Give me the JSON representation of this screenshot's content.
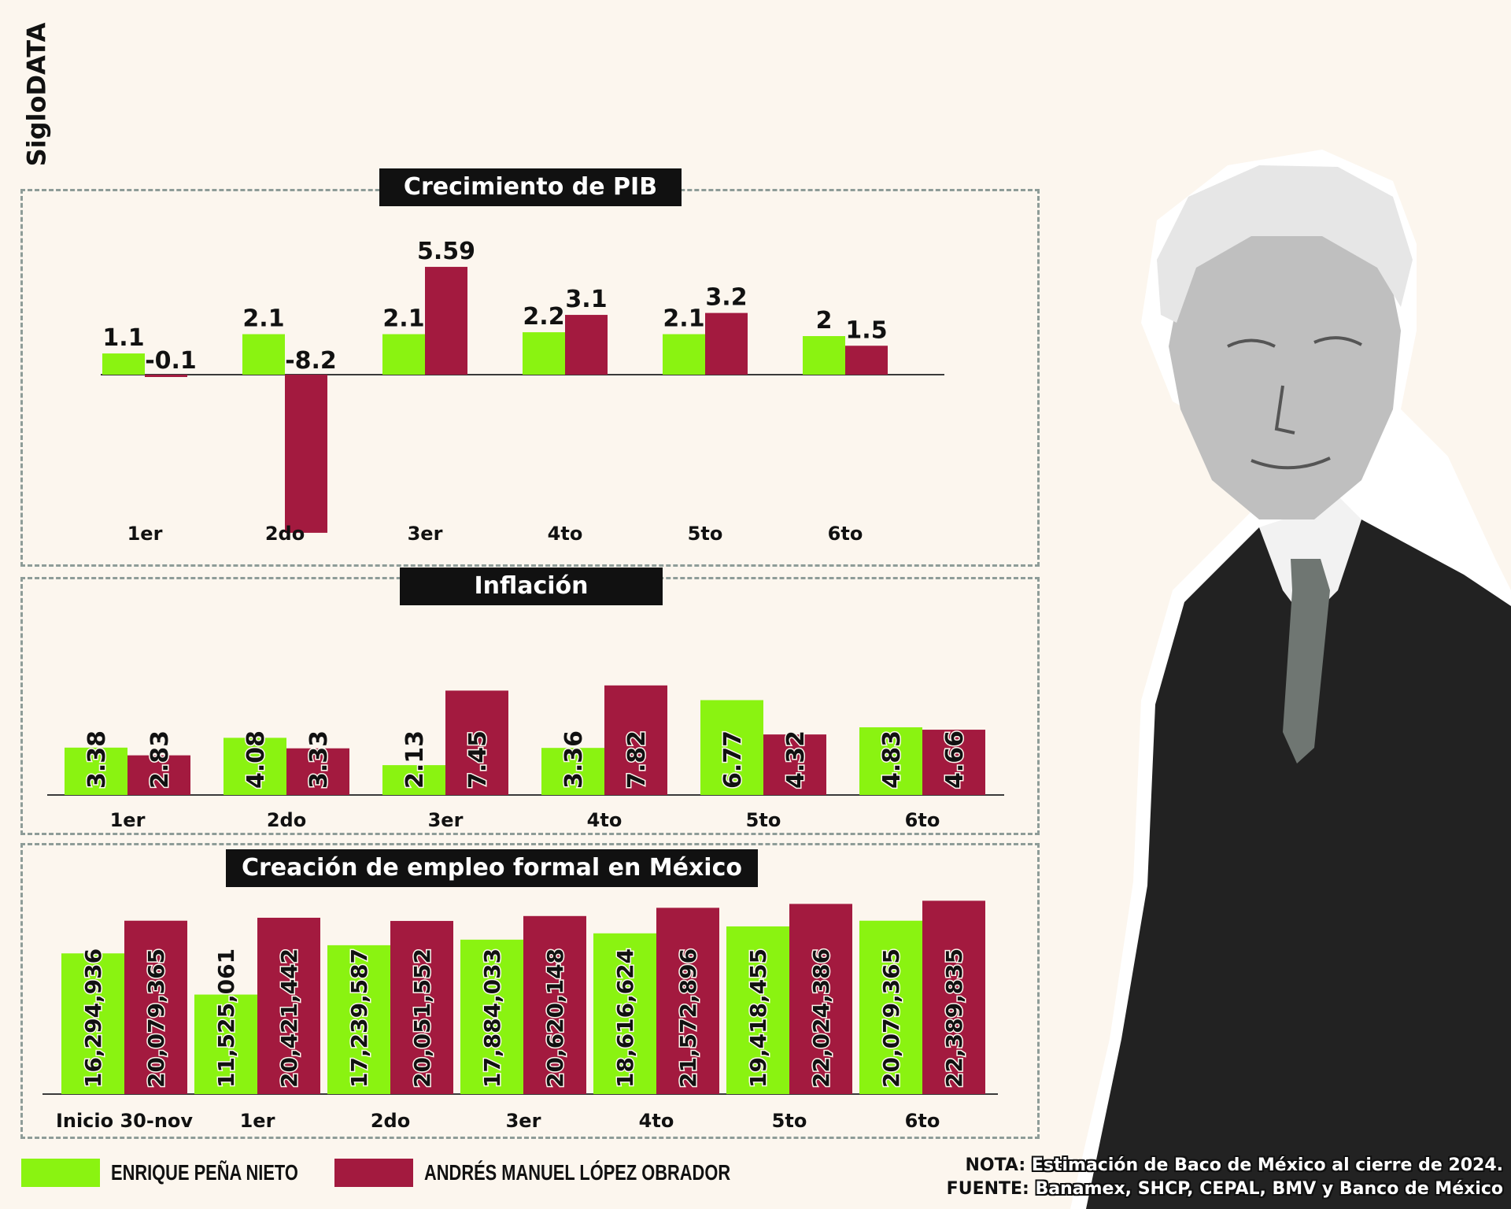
{
  "brand": "SigloDATA",
  "colors": {
    "epn": "#8af311",
    "amlo": "#a31a3f",
    "background": "#fcf6ee"
  },
  "legend": {
    "epn": "ENRIQUE PEÑA NIETO",
    "amlo": "ANDRÉS MANUEL LÓPEZ OBRADOR"
  },
  "notes": {
    "nota_label": "NOTA:",
    "nota_text": "Estimación de Baco de México al cierre de 2024.",
    "fuente_label": "FUENTE:",
    "fuente_text": "Banamex, SHCP, CEPAL, BMV y Banco de México"
  },
  "chart_data": [
    {
      "type": "bar",
      "title": "Crecimiento de PIB",
      "categories": [
        "1er",
        "2do",
        "3er",
        "4to",
        "5to",
        "6to"
      ],
      "series": [
        {
          "name": "ENRIQUE PEÑA NIETO",
          "values": [
            1.1,
            2.1,
            2.1,
            2.2,
            2.1,
            2
          ],
          "labels": [
            "1.1",
            "2.1",
            "2.1",
            "2.2",
            "2.1",
            "2"
          ]
        },
        {
          "name": "ANDRÉS MANUEL LÓPEZ OBRADOR",
          "values": [
            -0.1,
            -8.2,
            5.59,
            3.1,
            3.2,
            1.5
          ],
          "labels": [
            "-0.1",
            "-8.2",
            "5.59",
            "3.1",
            "3.2",
            "1.5"
          ]
        }
      ],
      "ylim": [
        -8.2,
        5.59
      ]
    },
    {
      "type": "bar",
      "title": "Inflación",
      "categories": [
        "1er",
        "2do",
        "3er",
        "4to",
        "5to",
        "6to"
      ],
      "series": [
        {
          "name": "ENRIQUE PEÑA NIETO",
          "values": [
            3.38,
            4.08,
            2.13,
            3.36,
            6.77,
            4.83
          ],
          "labels": [
            "3.38",
            "4.08",
            "2.13",
            "3.36",
            "6.77",
            "4.83"
          ]
        },
        {
          "name": "ANDRÉS MANUEL LÓPEZ OBRADOR",
          "values": [
            2.83,
            3.33,
            7.45,
            7.82,
            4.32,
            4.66
          ],
          "labels": [
            "2.83",
            "3.33",
            "7.45",
            "7.82",
            "4.32",
            "4.66"
          ]
        }
      ]
    },
    {
      "type": "bar",
      "title": "Creación de empleo formal en México",
      "categories": [
        "Inicio 30-nov",
        "1er",
        "2do",
        "3er",
        "4to",
        "5to",
        "6to"
      ],
      "series": [
        {
          "name": "ENRIQUE PEÑA NIETO",
          "values": [
            16294936,
            11525061,
            17239587,
            17884033,
            18616624,
            19418455,
            20079365
          ],
          "labels": [
            "16,294,936",
            "11,525,061",
            "17,239,587",
            "17,884,033",
            "18,616,624",
            "19,418,455",
            "20,079,365"
          ]
        },
        {
          "name": "ANDRÉS MANUEL LÓPEZ OBRADOR",
          "values": [
            20079365,
            20421442,
            20051552,
            20620148,
            21572896,
            22024386,
            22389835
          ],
          "labels": [
            "20,079,365",
            "20,421,442",
            "20,051,552",
            "20,620,148",
            "21,572,896",
            "22,024,386",
            "22,389,835"
          ]
        }
      ]
    }
  ]
}
